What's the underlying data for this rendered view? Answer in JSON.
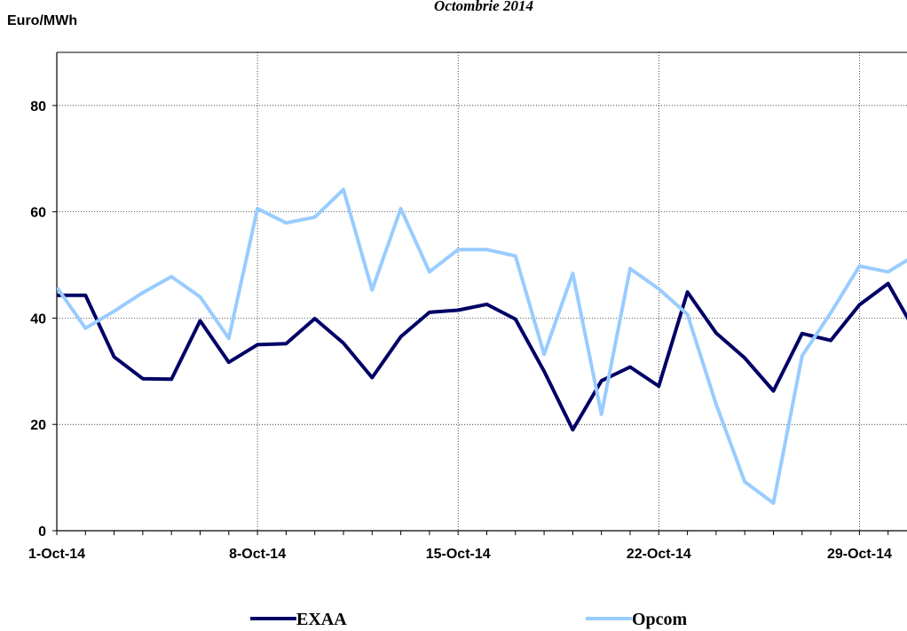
{
  "chart_data": {
    "type": "line",
    "title": "Octombrie 2014",
    "y_label": "Euro/MWh",
    "categories": [
      "1-Oct-14",
      null,
      null,
      null,
      null,
      null,
      null,
      "8-Oct-14",
      null,
      null,
      null,
      null,
      null,
      null,
      "15-Oct-14",
      null,
      null,
      null,
      null,
      null,
      null,
      "22-Oct-14",
      null,
      null,
      null,
      null,
      null,
      null,
      "29-Oct-14",
      null,
      null
    ],
    "series": [
      {
        "name": "EXAA",
        "color": "#000066",
        "values": [
          44.3,
          44.3,
          32.7,
          28.6,
          28.5,
          39.5,
          31.7,
          35,
          35.2,
          39.9,
          35.3,
          28.8,
          36.5,
          41.1,
          41.5,
          42.6,
          39.8,
          30,
          19,
          28.2,
          30.8,
          27.2,
          44.9,
          37.2,
          32.5,
          26.3,
          37.1,
          35.8,
          42.5,
          46.5,
          37
        ]
      },
      {
        "name": "Opcom",
        "color": "#99ccff",
        "values": [
          45.8,
          38.1,
          41.3,
          44.8,
          47.8,
          44,
          36.2,
          60.6,
          57.9,
          59,
          64.2,
          45.3,
          60.6,
          48.7,
          52.9,
          52.9,
          51.7,
          33.2,
          48.4,
          21.9,
          49.3,
          45.5,
          40.7,
          23.8,
          9.2,
          5.2,
          32.9,
          41,
          49.8,
          48.7,
          52
        ]
      }
    ],
    "ylim": [
      0,
      90
    ],
    "yticks": [
      0,
      20,
      40,
      60,
      80
    ],
    "grid": true
  }
}
